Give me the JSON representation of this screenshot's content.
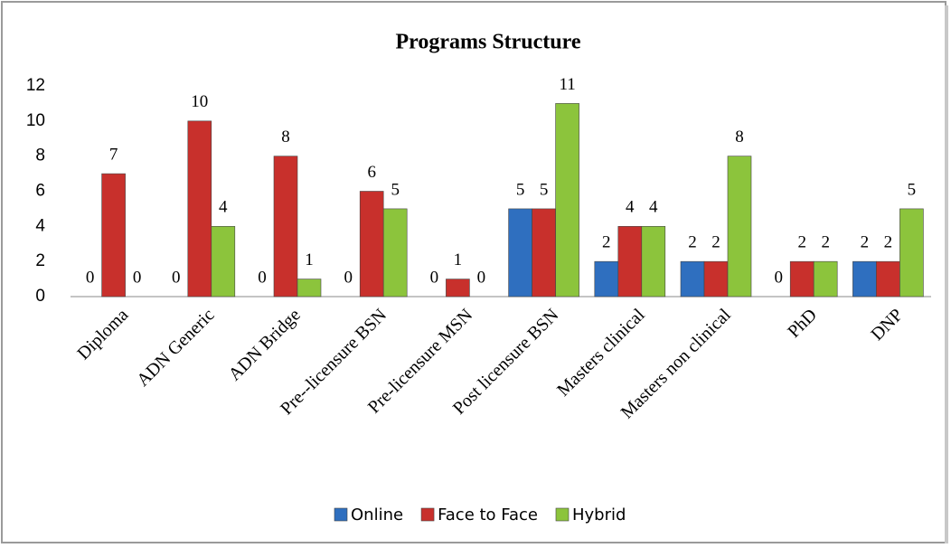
{
  "chart_data": {
    "type": "bar",
    "title": "Programs Structure",
    "categories": [
      "Diploma",
      "ADN Generic",
      "ADN Bridge",
      "Pre--licensure BSN",
      "Pre-licensure MSN",
      "Post licensure BSN",
      "Masters clinical",
      "Masters non clinical",
      "PhD",
      "DNP"
    ],
    "series": [
      {
        "name": "Online",
        "color": "#2f6fbf",
        "values": [
          0,
          0,
          0,
          0,
          0,
          5,
          2,
          2,
          0,
          2
        ]
      },
      {
        "name": "Face to Face",
        "color": "#c8302c",
        "values": [
          7,
          10,
          8,
          6,
          1,
          5,
          4,
          2,
          2,
          2
        ]
      },
      {
        "name": "Hybrid",
        "color": "#8cc43c",
        "values": [
          0,
          4,
          1,
          5,
          0,
          11,
          4,
          8,
          2,
          5
        ]
      }
    ],
    "ylim": [
      0,
      12
    ],
    "yticks": [
      0,
      2,
      4,
      6,
      8,
      10,
      12
    ],
    "grid": false,
    "legend": "bottom"
  }
}
